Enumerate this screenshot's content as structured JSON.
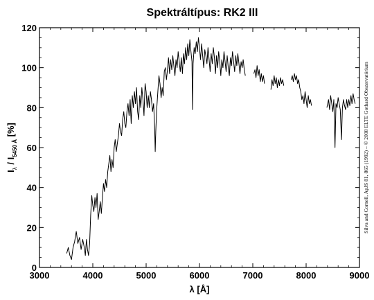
{
  "chart_data": {
    "type": "line",
    "title": "Spektráltípus: RK2 III",
    "xlabel": "λ [Å]",
    "ylabel_main": "I",
    "ylabel_sub1": "λ",
    "ylabel_sep": " / I",
    "ylabel_sub2": "5450 Å",
    "ylabel_unit": " [%]",
    "credit": "Silva and Cornell, ApJS 81, 865 (1992) – © 2008 ELTE Gothard Obszervatórium",
    "xlim": [
      3000,
      9000
    ],
    "ylim": [
      0,
      120
    ],
    "xticks": [
      3000,
      4000,
      5000,
      6000,
      7000,
      8000,
      9000
    ],
    "yticks": [
      0,
      20,
      40,
      60,
      80,
      100,
      120
    ],
    "grid": false,
    "line_color": "#000000",
    "series": [
      {
        "segments": [
          [
            [
              3510,
              7
            ],
            [
              3540,
              10
            ],
            [
              3570,
              6
            ],
            [
              3600,
              4
            ],
            [
              3630,
              10
            ],
            [
              3660,
              13
            ],
            [
              3690,
              18
            ],
            [
              3720,
              12
            ],
            [
              3750,
              15
            ],
            [
              3780,
              9
            ],
            [
              3810,
              14
            ],
            [
              3840,
              10
            ],
            [
              3860,
              6
            ],
            [
              3880,
              14
            ],
            [
              3900,
              9
            ],
            [
              3920,
              6
            ],
            [
              3940,
              12
            ],
            [
              3960,
              26
            ],
            [
              3980,
              36
            ],
            [
              4000,
              31
            ],
            [
              4020,
              28
            ],
            [
              4040,
              35
            ],
            [
              4060,
              30
            ],
            [
              4080,
              37
            ],
            [
              4100,
              24
            ],
            [
              4120,
              28
            ],
            [
              4140,
              33
            ],
            [
              4160,
              27
            ],
            [
              4180,
              35
            ],
            [
              4200,
              42
            ],
            [
              4220,
              38
            ],
            [
              4240,
              44
            ],
            [
              4260,
              40
            ],
            [
              4280,
              48
            ],
            [
              4300,
              52
            ],
            [
              4320,
              56
            ],
            [
              4340,
              48
            ],
            [
              4360,
              54
            ],
            [
              4380,
              50
            ],
            [
              4400,
              60
            ],
            [
              4420,
              64
            ],
            [
              4440,
              58
            ],
            [
              4460,
              62
            ],
            [
              4480,
              66
            ],
            [
              4500,
              72
            ],
            [
              4520,
              68
            ],
            [
              4540,
              66
            ],
            [
              4560,
              74
            ],
            [
              4580,
              78
            ],
            [
              4600,
              72
            ],
            [
              4620,
              70
            ],
            [
              4640,
              78
            ],
            [
              4660,
              82
            ],
            [
              4680,
              76
            ],
            [
              4700,
              84
            ],
            [
              4720,
              72
            ],
            [
              4740,
              86
            ],
            [
              4760,
              80
            ],
            [
              4780,
              88
            ],
            [
              4800,
              82
            ],
            [
              4820,
              90
            ],
            [
              4840,
              78
            ],
            [
              4860,
              74
            ],
            [
              4880,
              86
            ],
            [
              4900,
              80
            ],
            [
              4920,
              90
            ],
            [
              4940,
              84
            ],
            [
              4960,
              76
            ],
            [
              4980,
              92
            ],
            [
              5000,
              88
            ],
            [
              5020,
              80
            ],
            [
              5040,
              86
            ],
            [
              5060,
              80
            ],
            [
              5080,
              88
            ],
            [
              5100,
              84
            ],
            [
              5120,
              78
            ],
            [
              5140,
              82
            ],
            [
              5160,
              70
            ],
            [
              5170,
              58
            ],
            [
              5180,
              68
            ],
            [
              5200,
              80
            ],
            [
              5220,
              88
            ],
            [
              5240,
              96
            ],
            [
              5260,
              92
            ],
            [
              5280,
              85
            ],
            [
              5300,
              90
            ],
            [
              5320,
              86
            ],
            [
              5340,
              98
            ],
            [
              5360,
              100
            ],
            [
              5380,
              94
            ],
            [
              5400,
              99
            ],
            [
              5420,
              105
            ],
            [
              5440,
              97
            ],
            [
              5460,
              104
            ],
            [
              5480,
              99
            ],
            [
              5500,
              106
            ],
            [
              5520,
              101
            ],
            [
              5540,
              96
            ],
            [
              5560,
              104
            ],
            [
              5580,
              100
            ],
            [
              5600,
              108
            ],
            [
              5620,
              103
            ],
            [
              5640,
              98
            ],
            [
              5660,
              105
            ],
            [
              5680,
              97
            ],
            [
              5700,
              107
            ],
            [
              5720,
              102
            ],
            [
              5740,
              110
            ],
            [
              5760,
              104
            ],
            [
              5780,
              112
            ],
            [
              5800,
              106
            ],
            [
              5820,
              114
            ],
            [
              5840,
              108
            ],
            [
              5860,
              103
            ],
            [
              5870,
              79
            ],
            [
              5880,
              102
            ],
            [
              5900,
              110
            ],
            [
              5920,
              107
            ],
            [
              5940,
              113
            ],
            [
              5960,
              108
            ],
            [
              5980,
              115
            ],
            [
              6000,
              110
            ],
            [
              6020,
              104
            ],
            [
              6040,
              112
            ],
            [
              6060,
              106
            ],
            [
              6080,
              100
            ],
            [
              6100,
              109
            ],
            [
              6120,
              106
            ],
            [
              6140,
              102
            ],
            [
              6160,
              110
            ],
            [
              6180,
              104
            ],
            [
              6200,
              98
            ],
            [
              6220,
              107
            ],
            [
              6240,
              102
            ],
            [
              6260,
              110
            ],
            [
              6280,
              105
            ],
            [
              6300,
              97
            ],
            [
              6320,
              106
            ],
            [
              6340,
              100
            ],
            [
              6360,
              108
            ],
            [
              6380,
              103
            ],
            [
              6400,
              96
            ],
            [
              6420,
              104
            ],
            [
              6440,
              100
            ],
            [
              6460,
              108
            ],
            [
              6480,
              103
            ],
            [
              6500,
              98
            ],
            [
              6520,
              106
            ],
            [
              6540,
              100
            ],
            [
              6560,
              96
            ],
            [
              6580,
              105
            ],
            [
              6600,
              101
            ],
            [
              6620,
              108
            ],
            [
              6640,
              103
            ],
            [
              6660,
              98
            ],
            [
              6680,
              106
            ],
            [
              6700,
              101
            ],
            [
              6720,
              107
            ],
            [
              6740,
              102
            ],
            [
              6760,
              97
            ],
            [
              6780,
              103
            ],
            [
              6800,
              100
            ],
            [
              6820,
              104
            ],
            [
              6840,
              99
            ],
            [
              6860,
              96
            ]
          ],
          [
            [
              7020,
              97
            ],
            [
              7040,
              99
            ],
            [
              7060,
              95
            ],
            [
              7080,
              101
            ],
            [
              7100,
              96
            ],
            [
              7120,
              99
            ],
            [
              7140,
              93
            ],
            [
              7160,
              97
            ],
            [
              7180,
              93
            ],
            [
              7200,
              96
            ],
            [
              7220,
              92
            ]
          ],
          [
            [
              7340,
              89
            ],
            [
              7360,
              94
            ],
            [
              7380,
              91
            ],
            [
              7400,
              96
            ],
            [
              7420,
              92
            ],
            [
              7440,
              95
            ],
            [
              7460,
              90
            ],
            [
              7480,
              94
            ],
            [
              7500,
              91
            ],
            [
              7520,
              95
            ],
            [
              7540,
              92
            ],
            [
              7560,
              94
            ],
            [
              7580,
              91
            ]
          ],
          [
            [
              7720,
              94
            ],
            [
              7740,
              96
            ],
            [
              7760,
              93
            ],
            [
              7780,
              97
            ],
            [
              7800,
              94
            ],
            [
              7820,
              96
            ],
            [
              7840,
              92
            ],
            [
              7860,
              94
            ],
            [
              7880,
              90
            ],
            [
              7900,
              88
            ],
            [
              7920,
              84
            ],
            [
              7940,
              86
            ],
            [
              7960,
              82
            ],
            [
              7980,
              88
            ],
            [
              8000,
              84
            ],
            [
              8020,
              80
            ],
            [
              8040,
              86
            ],
            [
              8060,
              82
            ],
            [
              8080,
              84
            ],
            [
              8100,
              81
            ]
          ],
          [
            [
              8390,
              80
            ],
            [
              8420,
              84
            ],
            [
              8440,
              79
            ],
            [
              8460,
              86
            ],
            [
              8480,
              82
            ],
            [
              8500,
              78
            ],
            [
              8520,
              84
            ],
            [
              8542,
              60
            ],
            [
              8560,
              82
            ],
            [
              8580,
              80
            ],
            [
              8600,
              85
            ],
            [
              8620,
              82
            ],
            [
              8640,
              79
            ],
            [
              8662,
              64
            ],
            [
              8680,
              80
            ],
            [
              8700,
              84
            ],
            [
              8720,
              81
            ],
            [
              8740,
              79
            ],
            [
              8760,
              84
            ],
            [
              8780,
              80
            ],
            [
              8800,
              84
            ],
            [
              8820,
              81
            ],
            [
              8840,
              86
            ],
            [
              8860,
              82
            ],
            [
              8880,
              87
            ],
            [
              8900,
              84
            ],
            [
              8920,
              82
            ]
          ]
        ]
      }
    ]
  }
}
